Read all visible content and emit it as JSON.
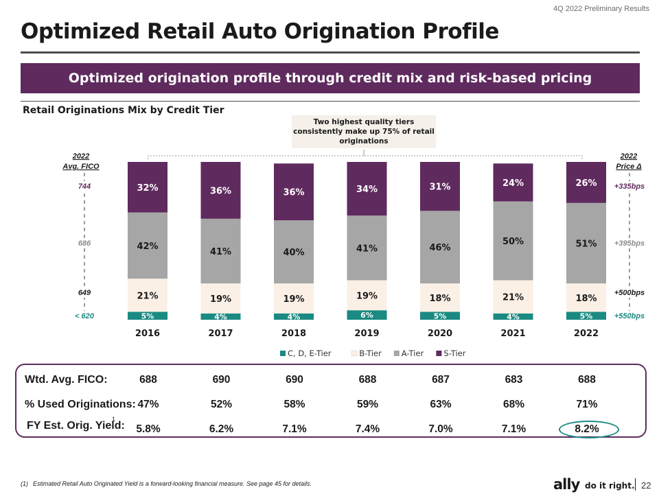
{
  "header": {
    "report_tag": "4Q 2022 Preliminary Results",
    "title": "Optimized Retail Auto Origination Profile",
    "banner": "Optimized origination profile through credit mix and risk-based pricing"
  },
  "callout": "Two highest quality tiers consistently make up 75% of retail originations",
  "colors": {
    "s_tier": "#5f2a5e",
    "a_tier": "#a6a6a6",
    "b_tier": "#faf0e6",
    "c_tier": "#1a8a82"
  },
  "left_axis": {
    "title_line1": "2022",
    "title_line2": "Avg. FICO",
    "labels": [
      {
        "text": "744",
        "color": "#5f2a5e"
      },
      {
        "text": "686",
        "color": "#8c8c8c"
      },
      {
        "text": "649",
        "color": "#1a1a1a"
      },
      {
        "text": "< 620",
        "color": "#1a8a82"
      }
    ]
  },
  "right_axis": {
    "title_line1": "2022",
    "title_line2": "Price Δ",
    "labels": [
      {
        "text": "+335bps",
        "color": "#5f2a5e"
      },
      {
        "text": "+395bps",
        "color": "#8c8c8c"
      },
      {
        "text": "+500bps",
        "color": "#1a1a1a"
      },
      {
        "text": "+550bps",
        "color": "#1a8a82"
      }
    ]
  },
  "chart_data": {
    "type": "bar",
    "stacked": true,
    "percent": true,
    "title": "Retail Originations Mix by Credit Tier",
    "categories": [
      "2016",
      "2017",
      "2018",
      "2019",
      "2020",
      "2021",
      "2022"
    ],
    "series": [
      {
        "name": "C, D, E-Tier",
        "values": [
          5,
          4,
          4,
          6,
          5,
          4,
          5
        ]
      },
      {
        "name": "B-Tier",
        "values": [
          21,
          19,
          19,
          19,
          18,
          21,
          18
        ]
      },
      {
        "name": "A-Tier",
        "values": [
          42,
          41,
          40,
          41,
          46,
          50,
          51
        ]
      },
      {
        "name": "S-Tier",
        "values": [
          32,
          36,
          36,
          34,
          31,
          24,
          26
        ]
      }
    ],
    "legend_position": "bottom"
  },
  "stats": {
    "rows": [
      {
        "label": "Wtd. Avg. FICO:",
        "values": [
          "688",
          "690",
          "690",
          "688",
          "687",
          "683",
          "688"
        ]
      },
      {
        "label": "% Used Originations:",
        "values": [
          "47%",
          "52%",
          "58%",
          "59%",
          "63%",
          "68%",
          "71%"
        ]
      },
      {
        "label": "FY Est. Orig. Yield:",
        "sup": "1",
        "values": [
          "5.8%",
          "6.2%",
          "7.1%",
          "7.4%",
          "7.0%",
          "7.1%",
          "8.2%"
        ]
      }
    ]
  },
  "footer": {
    "footnote_number": "(1)",
    "footnote_text": "Estimated Retail Auto Originated Yield is a forward-looking financial measure. See page 45 for details.",
    "brand": "ally",
    "tagline": "do it right.",
    "page_number": "22"
  }
}
